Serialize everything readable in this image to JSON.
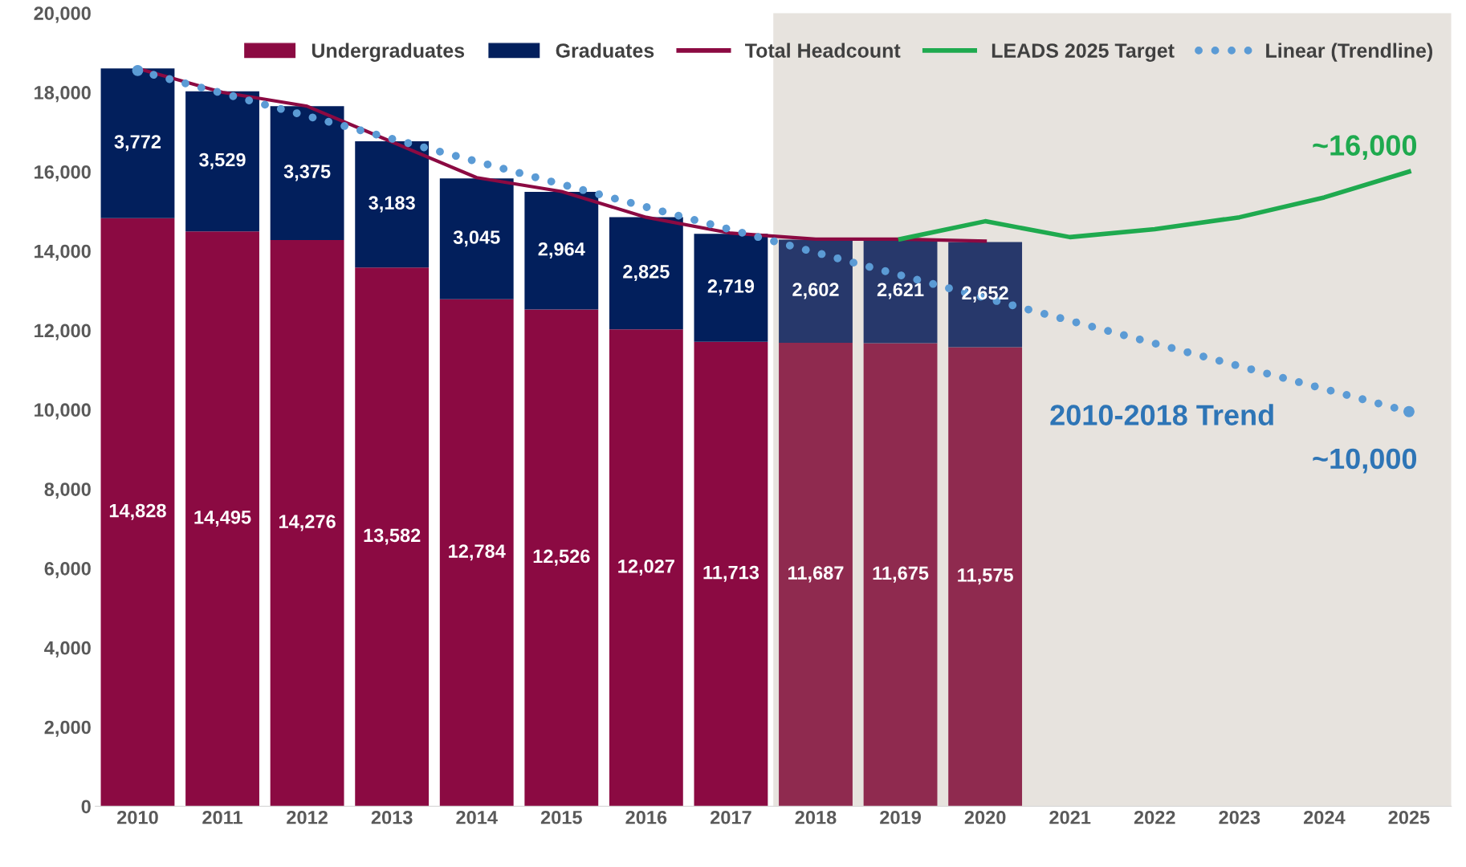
{
  "chart_data": {
    "type": "bar",
    "stacked": true,
    "categories": [
      "2010",
      "2011",
      "2012",
      "2013",
      "2014",
      "2015",
      "2016",
      "2017",
      "2018",
      "2019",
      "2020",
      "2021",
      "2022",
      "2023",
      "2024",
      "2025"
    ],
    "ylim": [
      0,
      20000
    ],
    "yticks": [
      {
        "value": 0,
        "label": "0"
      },
      {
        "value": 2000,
        "label": "2,000"
      },
      {
        "value": 4000,
        "label": "4,000"
      },
      {
        "value": 6000,
        "label": "6,000"
      },
      {
        "value": 8000,
        "label": "8,000"
      },
      {
        "value": 10000,
        "label": "10,000"
      },
      {
        "value": 12000,
        "label": "12,000"
      },
      {
        "value": 14000,
        "label": "14,000"
      },
      {
        "value": 16000,
        "label": "16,000"
      },
      {
        "value": 18000,
        "label": "18,000"
      },
      {
        "value": 20000,
        "label": "20,000"
      }
    ],
    "legend": "top right",
    "grid": false,
    "bands": [
      {
        "axis": "x",
        "from": "2018",
        "to": "2025",
        "color": "#e7e3de"
      }
    ],
    "series": [
      {
        "name": "Undergraduates",
        "color": "#8b0a42",
        "colors": [
          "#8b0a42",
          "#8b0a42",
          "#8b0a42",
          "#8b0a42",
          "#8b0a42",
          "#8b0a42",
          "#8b0a42",
          "#8b0a42",
          "#8f2a4f",
          "#8f2a4f",
          "#8f2a4f",
          null,
          null,
          null,
          null,
          null
        ],
        "values": [
          14828,
          14495,
          14276,
          13582,
          12784,
          12526,
          12027,
          11713,
          11687,
          11675,
          11575,
          null,
          null,
          null,
          null,
          null
        ],
        "value_labels": [
          "14,828",
          "14,495",
          "14,276",
          "13,582",
          "12,784",
          "12,526",
          "12,027",
          "11,713",
          "11,687",
          "11,675",
          "11,575",
          null,
          null,
          null,
          null,
          null
        ]
      },
      {
        "name": "Graduates",
        "color": "#021f5c",
        "colors": [
          "#021f5c",
          "#021f5c",
          "#021f5c",
          "#021f5c",
          "#021f5c",
          "#021f5c",
          "#021f5c",
          "#021f5c",
          "#27386b",
          "#27386b",
          "#27386b",
          null,
          null,
          null,
          null,
          null
        ],
        "values": [
          3772,
          3529,
          3375,
          3183,
          3045,
          2964,
          2825,
          2719,
          2602,
          2621,
          2652,
          null,
          null,
          null,
          null,
          null
        ],
        "value_labels": [
          "3,772",
          "3,529",
          "3,375",
          "3,183",
          "3,045",
          "2,964",
          "2,825",
          "2,719",
          "2,602",
          "2,621",
          "2,652",
          null,
          null,
          null,
          null,
          null
        ]
      },
      {
        "name": "Total Headcount",
        "type": "line",
        "color": "#8b0a42",
        "marker": "none",
        "line_style": "solid",
        "values": [
          18600,
          18000,
          17650,
          16750,
          15850,
          15500,
          14850,
          14450,
          14300,
          14300,
          14250,
          null,
          null,
          null,
          null,
          null
        ]
      },
      {
        "name": "LEADS 2025 Target",
        "type": "line",
        "color": "#1faa4f",
        "marker": "none",
        "line_style": "solid",
        "values": [
          null,
          null,
          null,
          null,
          null,
          null,
          null,
          null,
          null,
          14300,
          14750,
          14350,
          14550,
          14850,
          15350,
          16000
        ]
      },
      {
        "name": "Linear (Trendline)",
        "type": "line",
        "color": "#5b9bd5",
        "marker": "circle",
        "line_style": "dotted",
        "values": [
          18550,
          null,
          null,
          null,
          null,
          null,
          null,
          null,
          null,
          null,
          null,
          null,
          null,
          null,
          null,
          9950
        ]
      }
    ],
    "annotations": [
      "2010-2018 Trend",
      "~16,000",
      "~10,000"
    ]
  }
}
